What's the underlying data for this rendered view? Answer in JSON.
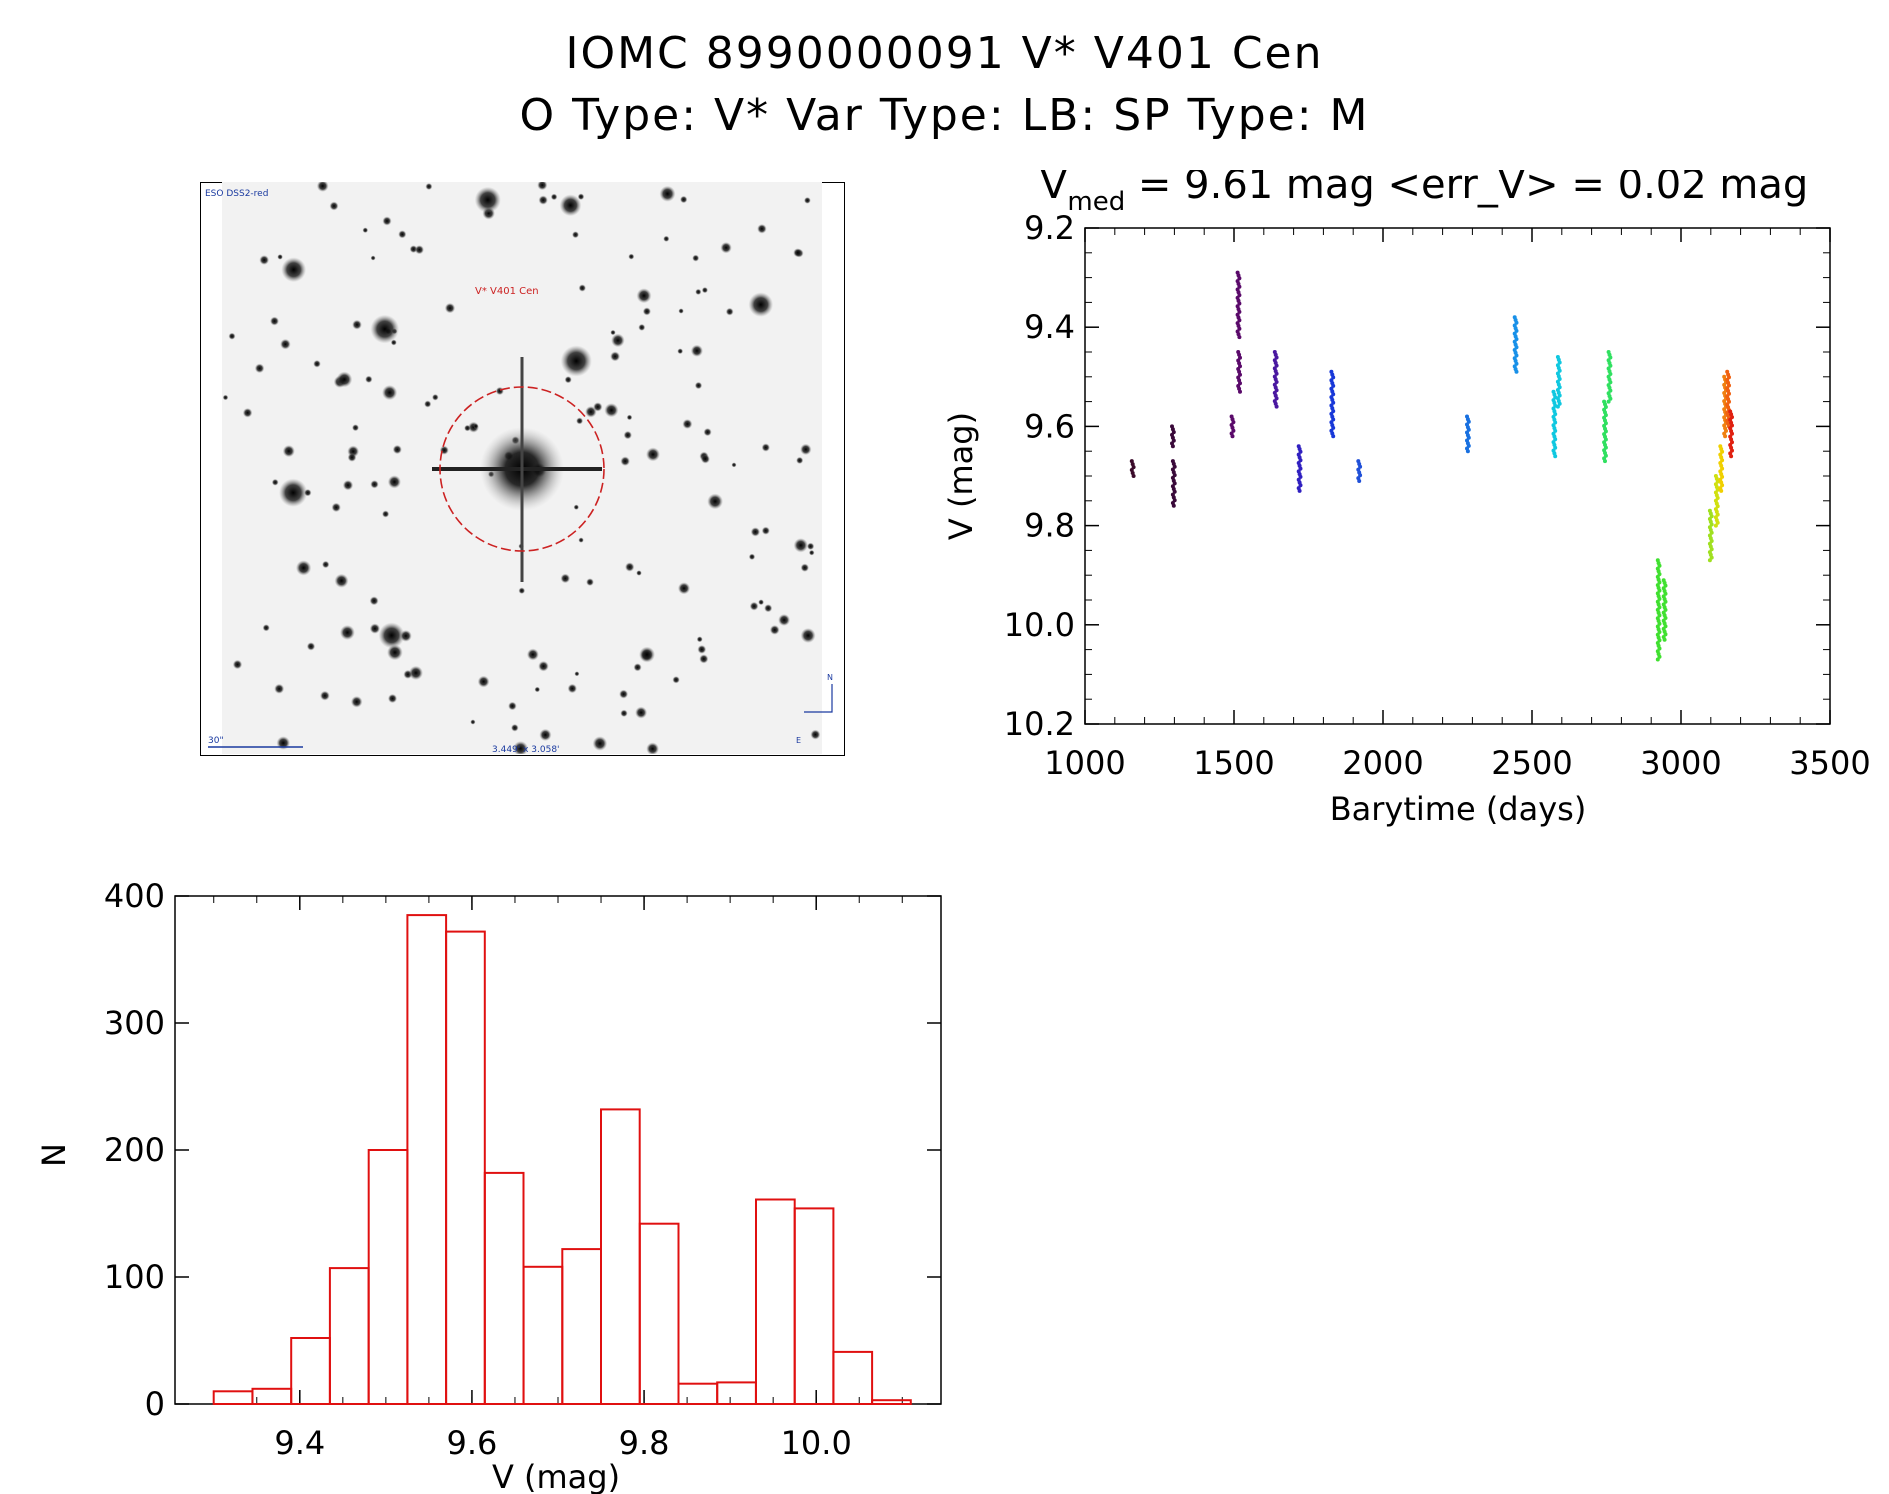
{
  "header": {
    "line1": "IOMC 8990000091    V* V401 Cen",
    "line2": "O Type: V*  Var Type: LB:  SP Type: M"
  },
  "finder": {
    "survey_label": "ESO DSS2-red",
    "target_label": "V* V401 Cen",
    "scale_label": "30\"",
    "fov_label": "3.449' x 3.058'",
    "north_label": "N",
    "east_label": "E",
    "colors": {
      "circle": "#cc2222",
      "labels": "#1a3aa0"
    }
  },
  "chart_data": [
    {
      "type": "scatter",
      "name": "light-curve",
      "title_main": "V",
      "title_sub": "med",
      "title_rest": " = 9.61 mag <err_V> = 0.02 mag",
      "xlabel": "Barytime (days)",
      "ylabel": "V (mag)",
      "xlim": [
        1000,
        3500
      ],
      "ylim": [
        10.2,
        9.2
      ],
      "x_ticks": [
        1000,
        1500,
        2000,
        2500,
        3000,
        3500
      ],
      "x_tick_labels": [
        "1000",
        "1500",
        "2000",
        "2500",
        "3000",
        "3500"
      ],
      "y_ticks": [
        9.2,
        9.4,
        9.6,
        9.8,
        10.0,
        10.2
      ],
      "y_tick_labels": [
        "9.2",
        "9.4",
        "9.6",
        "9.8",
        "10.0",
        "10.2"
      ],
      "segments": [
        {
          "x": 1160,
          "y1": 9.67,
          "y2": 9.7,
          "color": "#3a0a2a"
        },
        {
          "x": 1295,
          "y1": 9.6,
          "y2": 9.64,
          "color": "#3a0a3a"
        },
        {
          "x": 1298,
          "y1": 9.67,
          "y2": 9.76,
          "color": "#3a0a3a"
        },
        {
          "x": 1495,
          "y1": 9.58,
          "y2": 9.62,
          "color": "#5a0a6a"
        },
        {
          "x": 1515,
          "y1": 9.29,
          "y2": 9.42,
          "color": "#5a0a6a"
        },
        {
          "x": 1517,
          "y1": 9.45,
          "y2": 9.53,
          "color": "#5a0a6a"
        },
        {
          "x": 1640,
          "y1": 9.45,
          "y2": 9.56,
          "color": "#4a18a0"
        },
        {
          "x": 1720,
          "y1": 9.64,
          "y2": 9.73,
          "color": "#3020c0"
        },
        {
          "x": 1830,
          "y1": 9.49,
          "y2": 9.62,
          "color": "#1838d8"
        },
        {
          "x": 1920,
          "y1": 9.67,
          "y2": 9.71,
          "color": "#2050d8"
        },
        {
          "x": 2285,
          "y1": 9.58,
          "y2": 9.65,
          "color": "#1870e0"
        },
        {
          "x": 2445,
          "y1": 9.38,
          "y2": 9.49,
          "color": "#1890e8"
        },
        {
          "x": 2575,
          "y1": 9.53,
          "y2": 9.66,
          "color": "#10c8e0"
        },
        {
          "x": 2590,
          "y1": 9.46,
          "y2": 9.56,
          "color": "#10c8e0"
        },
        {
          "x": 2745,
          "y1": 9.55,
          "y2": 9.67,
          "color": "#30e060"
        },
        {
          "x": 2760,
          "y1": 9.45,
          "y2": 9.55,
          "color": "#30e060"
        },
        {
          "x": 2925,
          "y1": 9.87,
          "y2": 10.07,
          "color": "#40e030"
        },
        {
          "x": 2945,
          "y1": 9.91,
          "y2": 10.03,
          "color": "#40e030"
        },
        {
          "x": 3100,
          "y1": 9.77,
          "y2": 9.87,
          "color": "#a0e020"
        },
        {
          "x": 3120,
          "y1": 9.7,
          "y2": 9.8,
          "color": "#d0e010"
        },
        {
          "x": 3135,
          "y1": 9.64,
          "y2": 9.73,
          "color": "#f0d000"
        },
        {
          "x": 3148,
          "y1": 9.5,
          "y2": 9.62,
          "color": "#f08010"
        },
        {
          "x": 3158,
          "y1": 9.49,
          "y2": 9.6,
          "color": "#f06010"
        },
        {
          "x": 3168,
          "y1": 9.57,
          "y2": 9.66,
          "color": "#e02010"
        }
      ]
    },
    {
      "type": "bar",
      "name": "histogram",
      "xlabel": "V (mag)",
      "ylabel": "N",
      "xlim": [
        9.255,
        10.145
      ],
      "ylim": [
        0,
        400
      ],
      "x_ticks": [
        9.4,
        9.6,
        9.8,
        10.0
      ],
      "x_tick_labels": [
        "9.4",
        "9.6",
        "9.8",
        "10.0"
      ],
      "y_ticks": [
        0,
        100,
        200,
        300,
        400
      ],
      "y_tick_labels": [
        "0",
        "100",
        "200",
        "300",
        "400"
      ],
      "bin_start": 9.3,
      "bin_width": 0.045,
      "values": [
        10,
        12,
        52,
        107,
        200,
        385,
        372,
        182,
        108,
        122,
        232,
        142,
        16,
        17,
        161,
        154,
        41,
        3
      ],
      "color": "#e01010"
    }
  ]
}
